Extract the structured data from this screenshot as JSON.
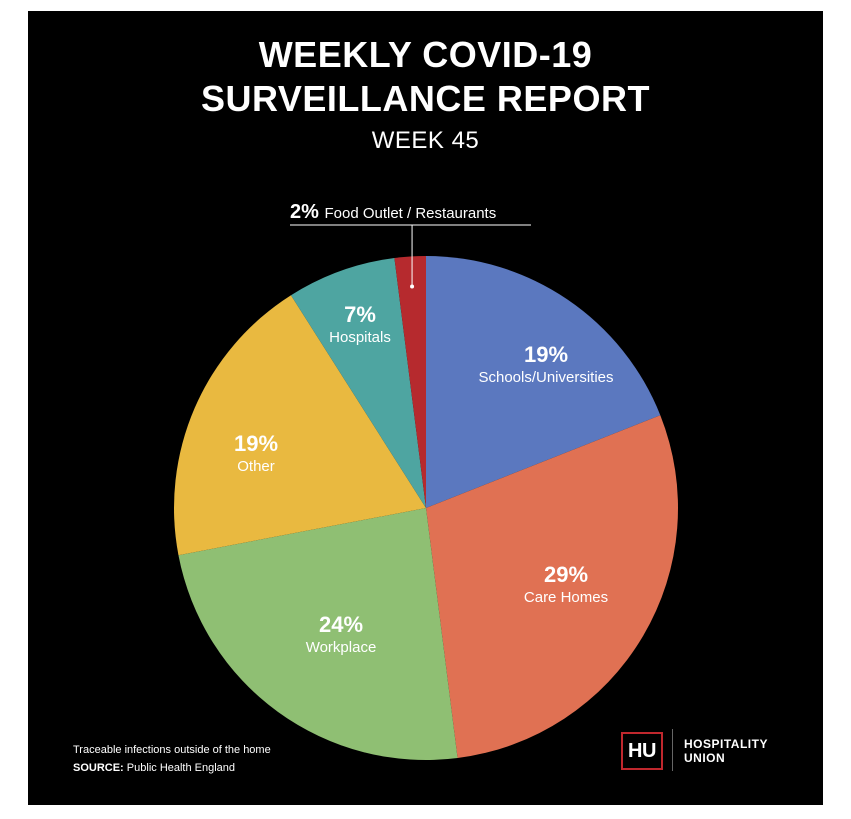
{
  "header": {
    "title_line1": "WEEKLY COVID-19",
    "title_line2": "SURVEILLANCE REPORT",
    "subtitle": "WEEK 45"
  },
  "chart_data": {
    "type": "pie",
    "slices": [
      {
        "label": "Schools/Universities",
        "value": 19,
        "pct_label": "19%",
        "color": "#5b78bf"
      },
      {
        "label": "Care Homes",
        "value": 29,
        "pct_label": "29%",
        "color": "#e07153"
      },
      {
        "label": "Workplace",
        "value": 24,
        "pct_label": "24%",
        "color": "#8fbf73"
      },
      {
        "label": "Other",
        "value": 19,
        "pct_label": "19%",
        "color": "#e9b940"
      },
      {
        "label": "Hospitals",
        "value": 7,
        "pct_label": "7%",
        "color": "#4ea5a1"
      },
      {
        "label": "Food Outlet / Restaurants",
        "value": 2,
        "pct_label": "2%",
        "color": "#b62a2e"
      }
    ]
  },
  "footer": {
    "note": "Traceable infections outside of the home",
    "source_label": "SOURCE:",
    "source_value": "Public Health England"
  },
  "logo": {
    "mark": "HU",
    "line1": "HOSPITALITY",
    "line2": "UNION",
    "accent": "#c0272d"
  }
}
